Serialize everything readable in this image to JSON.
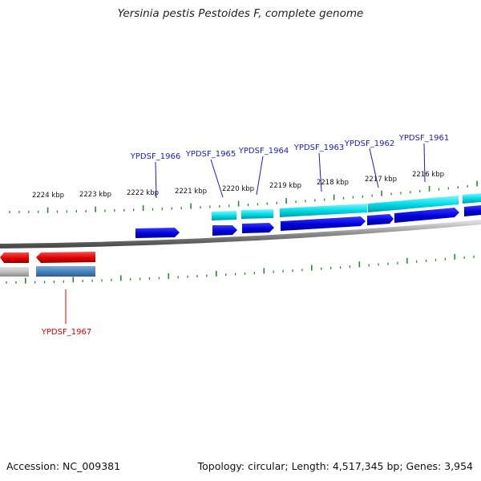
{
  "title": "Yersinia pestis Pestoides F, complete genome",
  "footer": {
    "accession": "Accession: NC_009381",
    "summary": "Topology: circular; Length: 4,517,345 bp; Genes: 3,954"
  },
  "kbp_labels": [
    "2224 kbp",
    "2223 kbp",
    "2222 kbp",
    "2221 kbp",
    "2220 kbp",
    "2219 kbp",
    "2218 kbp",
    "2217 kbp",
    "2216 kbp"
  ],
  "gene_labels": [
    {
      "name": "YPDSF_1966",
      "strand": "forward"
    },
    {
      "name": "YPDSF_1965",
      "strand": "forward"
    },
    {
      "name": "YPDSF_1964",
      "strand": "forward"
    },
    {
      "name": "YPDSF_1963",
      "strand": "forward"
    },
    {
      "name": "YPDSF_1962",
      "strand": "forward"
    },
    {
      "name": "YPDSF_1961",
      "strand": "forward"
    },
    {
      "name": "YPDSF_1967",
      "strand": "reverse"
    }
  ],
  "colors": {
    "forward_gene": "#0000dd",
    "reverse_gene": "#ee0000",
    "forward_label": "#1a1acc",
    "reverse_label": "#dd0000",
    "cds_track": "#00d8e0",
    "reverse_cds_track": "#4a86c0",
    "grey_track": "#bbbbbb",
    "backbone": "#888888",
    "tick": "#2a8a2a"
  }
}
